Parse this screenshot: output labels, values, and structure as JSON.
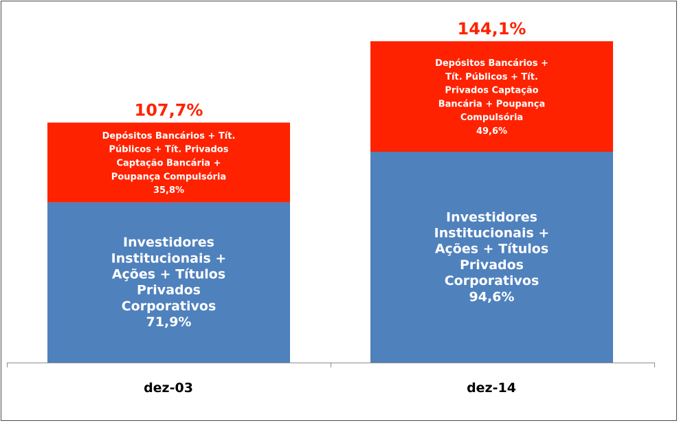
{
  "chart_data": {
    "type": "bar",
    "stacked": true,
    "categories": [
      "dez-03",
      "dez-14"
    ],
    "totals": [
      "107,7%",
      "144,1%"
    ],
    "series": [
      {
        "values": [
          71.9,
          94.6
        ],
        "value_labels": [
          "71,9%",
          "94,6%"
        ],
        "label_lines": [
          [
            "Investidores",
            "Institucionais +",
            "Ações + Títulos",
            "Privados",
            "Corporativos",
            "71,9%"
          ],
          [
            "Investidores",
            "Institucionais +",
            "Ações + Títulos",
            "Privados",
            "Corporativos",
            "94,6%"
          ]
        ],
        "color": "#4f81bd"
      },
      {
        "values": [
          35.8,
          49.6
        ],
        "value_labels": [
          "35,8%",
          "49,6%"
        ],
        "label_lines": [
          [
            "Depósitos Bancários + Tít.",
            "Públicos + Tít. Privados",
            "Captação Bancária +",
            "Poupança Compulsória",
            "35,8%"
          ],
          [
            "Depósitos Bancários +",
            "Tít. Públicos + Tít.",
            "Privados Captação",
            "Bancária + Poupança",
            "Compulsória",
            "49,6%"
          ]
        ],
        "color": "#ff2200"
      }
    ],
    "grid": false,
    "legend": "none"
  }
}
